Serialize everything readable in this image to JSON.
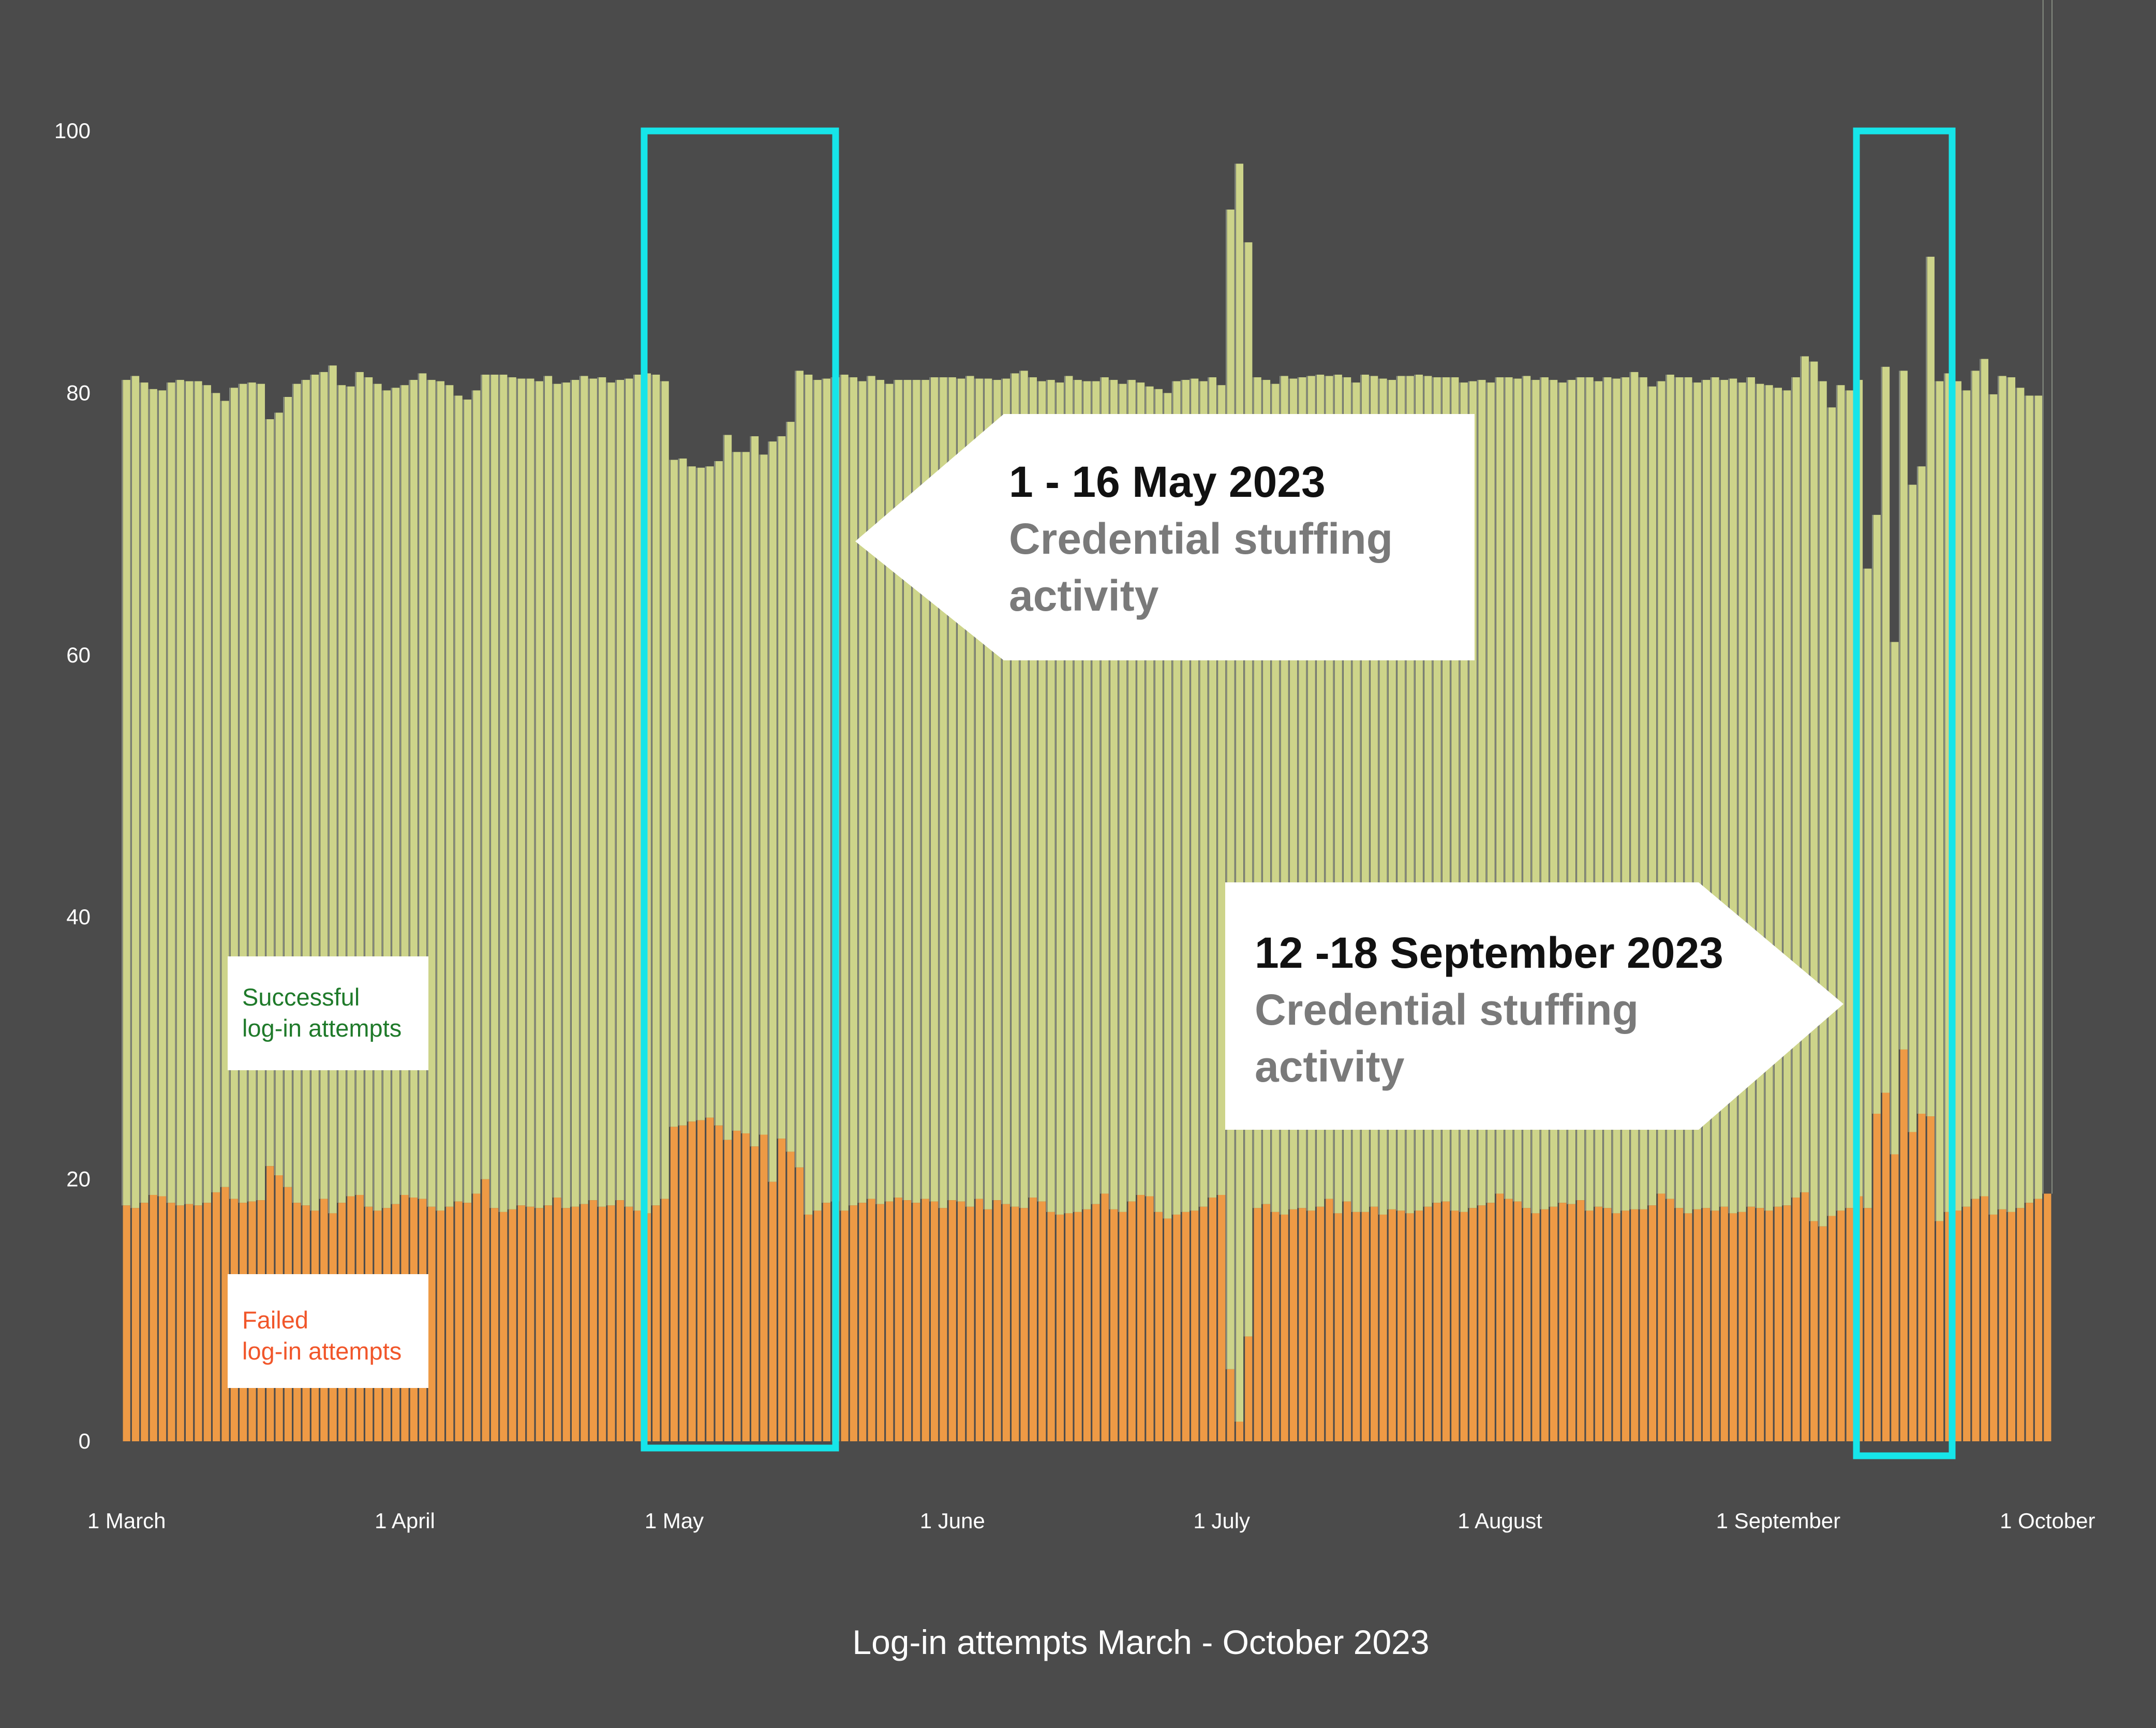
{
  "colors": {
    "background": "#4b4b4b",
    "success": "#cdd48a",
    "success_stripe": "#a8b2a0",
    "failed": "#ee9a45",
    "highlight": "#16e5e9",
    "success_text": "#1f7a2a",
    "failed_text": "#f1562a",
    "callout_bg": "#ffffff"
  },
  "legend": {
    "success": {
      "line1": "Successful",
      "line2": "log-in attempts"
    },
    "failed": {
      "line1": "Failed",
      "line2": "log-in attempts"
    }
  },
  "callouts": [
    {
      "title": "1 - 16 May 2023",
      "line1": "Credential stuffing",
      "line2": "activity",
      "pointer": "left"
    },
    {
      "title": "12 -18 September 2023",
      "line1": "Credential stuffing",
      "line2": "activity",
      "pointer": "right"
    }
  ],
  "chart_data": {
    "type": "bar",
    "stacked": true,
    "title": "Log-in attempts March - October 2023",
    "xlabel": "",
    "ylabel": "",
    "ylim": [
      0,
      100
    ],
    "yticks": [
      0,
      20,
      40,
      60,
      80,
      100
    ],
    "grid": false,
    "x_tick_labels": [
      "1 March",
      "1 April",
      "1 May",
      "1 June",
      "1 July",
      "1 August",
      "1 September",
      "1 October"
    ],
    "x_tick_days": [
      0,
      31,
      61,
      92,
      122,
      153,
      184,
      214
    ],
    "highlight_ranges": [
      {
        "start": "1 May",
        "end": "16 May"
      },
      {
        "start": "12 September",
        "end": "18 September"
      }
    ],
    "series": [
      {
        "name": "Failed log-in attempts",
        "values": [
          18.0,
          17.8,
          18.2,
          18.8,
          18.7,
          18.2,
          18.0,
          18.1,
          18.0,
          18.2,
          19.0,
          19.4,
          18.5,
          18.2,
          18.3,
          18.4,
          21.0,
          20.3,
          19.4,
          18.2,
          18.0,
          17.6,
          18.5,
          17.4,
          18.2,
          18.7,
          18.8,
          17.9,
          17.6,
          17.8,
          18.1,
          18.8,
          18.6,
          18.5,
          17.9,
          17.6,
          17.9,
          18.3,
          18.2,
          18.9,
          20.0,
          17.8,
          17.5,
          17.7,
          18.0,
          17.9,
          17.8,
          18.0,
          18.6,
          17.8,
          17.9,
          18.1,
          18.4,
          17.9,
          18.0,
          18.4,
          17.9,
          17.6,
          17.4,
          18.0,
          18.5,
          24.0,
          24.1,
          24.4,
          24.5,
          24.7,
          24.1,
          23.0,
          23.7,
          23.5,
          22.5,
          23.4,
          19.8,
          23.1,
          22.1,
          20.9,
          17.3,
          17.6,
          18.2,
          18.3,
          17.6,
          18.0,
          18.2,
          18.5,
          18.1,
          18.3,
          18.6,
          18.4,
          18.2,
          18.5,
          18.3,
          17.8,
          18.4,
          18.3,
          17.9,
          18.5,
          17.7,
          18.4,
          18.1,
          17.9,
          17.8,
          18.6,
          18.3,
          17.5,
          17.3,
          17.4,
          17.5,
          17.7,
          18.1,
          18.9,
          17.7,
          17.5,
          18.3,
          18.8,
          18.7,
          17.5,
          17.0,
          17.3,
          17.5,
          17.6,
          17.9,
          18.6,
          18.8,
          5.5,
          1.5,
          8.0,
          17.8,
          18.1,
          17.5,
          17.3,
          17.7,
          17.8,
          17.6,
          17.9,
          18.5,
          17.4,
          18.3,
          17.5,
          17.5,
          17.9,
          17.3,
          17.7,
          17.6,
          17.4,
          17.6,
          17.9,
          18.2,
          18.3,
          17.6,
          17.5,
          17.8,
          18.0,
          18.2,
          18.9,
          18.5,
          18.3,
          17.8,
          17.4,
          17.7,
          17.9,
          18.2,
          18.1,
          18.4,
          17.6,
          17.9,
          17.8,
          17.4,
          17.6,
          17.7,
          17.7,
          18.0,
          18.9,
          18.5,
          17.8,
          17.4,
          17.7,
          17.8,
          17.6,
          17.9,
          17.4,
          17.5,
          17.9,
          17.8,
          17.6,
          17.9,
          18.0,
          18.6,
          19.0,
          16.8,
          16.4,
          17.2,
          17.6,
          17.8,
          18.7,
          17.8,
          25.0,
          26.6,
          21.9,
          29.9,
          23.6,
          25.0,
          24.8,
          16.8,
          17.5,
          17.6,
          17.9,
          18.5,
          18.7,
          17.3,
          17.7,
          17.5,
          17.8,
          18.2,
          18.5,
          18.9
        ],
        "color": "#ee9a45"
      },
      {
        "name": "Successful log-in attempts",
        "values": [
          63.0,
          63.5,
          62.6,
          61.5,
          61.5,
          62.6,
          63.0,
          62.8,
          62.9,
          62.4,
          61.0,
          60.0,
          61.9,
          62.5,
          62.5,
          62.3,
          57.0,
          58.2,
          60.3,
          62.5,
          63.0,
          63.8,
          63.1,
          64.7,
          62.4,
          61.8,
          62.8,
          63.3,
          63.1,
          62.4,
          62.3,
          61.8,
          62.4,
          63.0,
          63.1,
          63.3,
          62.7,
          61.5,
          61.3,
          61.3,
          61.4,
          63.6,
          63.9,
          63.5,
          63.1,
          63.2,
          63.1,
          63.3,
          62.1,
          63.0,
          63.1,
          63.2,
          62.7,
          63.3,
          62.8,
          62.6,
          63.2,
          63.8,
          64.1,
          63.4,
          62.4,
          50.9,
          50.9,
          50.0,
          49.8,
          49.7,
          50.7,
          53.8,
          51.8,
          52.0,
          54.2,
          51.9,
          56.5,
          53.6,
          55.7,
          60.8,
          64.1,
          63.4,
          62.9,
          62.9,
          63.8,
          63.2,
          62.7,
          62.8,
          62.9,
          62.4,
          62.4,
          62.6,
          62.8,
          62.5,
          62.9,
          63.4,
          62.8,
          62.8,
          63.4,
          62.6,
          63.4,
          62.6,
          63.0,
          63.6,
          63.9,
          62.6,
          62.6,
          63.5,
          63.5,
          63.9,
          63.5,
          63.2,
          62.8,
          62.3,
          63.3,
          63.2,
          62.7,
          62.0,
          61.8,
          62.8,
          63.0,
          63.6,
          63.5,
          63.5,
          63.0,
          62.6,
          61.8,
          88.5,
          96.0,
          83.5,
          63.4,
          62.9,
          63.2,
          64.0,
          63.4,
          63.4,
          63.7,
          63.5,
          62.8,
          64.0,
          62.9,
          63.3,
          63.9,
          63.4,
          63.8,
          63.3,
          63.7,
          63.9,
          63.8,
          63.4,
          63.0,
          62.9,
          63.6,
          63.3,
          63.1,
          63.0,
          62.6,
          62.3,
          62.7,
          62.8,
          63.5,
          63.6,
          63.5,
          63.1,
          62.6,
          62.9,
          62.8,
          63.6,
          63.0,
          63.4,
          63.7,
          63.6,
          63.9,
          63.5,
          62.5,
          62.0,
          62.9,
          63.4,
          63.8,
          63.1,
          63.2,
          63.6,
          63.1,
          63.7,
          63.3,
          63.3,
          62.9,
          63.0,
          62.5,
          62.2,
          62.6,
          63.8,
          65.6,
          64.5,
          61.7,
          63.0,
          62.4,
          62.3,
          48.8,
          45.7,
          55.4,
          39.1,
          51.8,
          49.4,
          49.4,
          65.6,
          64.1,
          64.0,
          63.3,
          62.3,
          63.2,
          63.9,
          62.6,
          63.6,
          63.7,
          62.6,
          61.6,
          61.3
        ],
        "color": "#cdd48a"
      }
    ]
  }
}
